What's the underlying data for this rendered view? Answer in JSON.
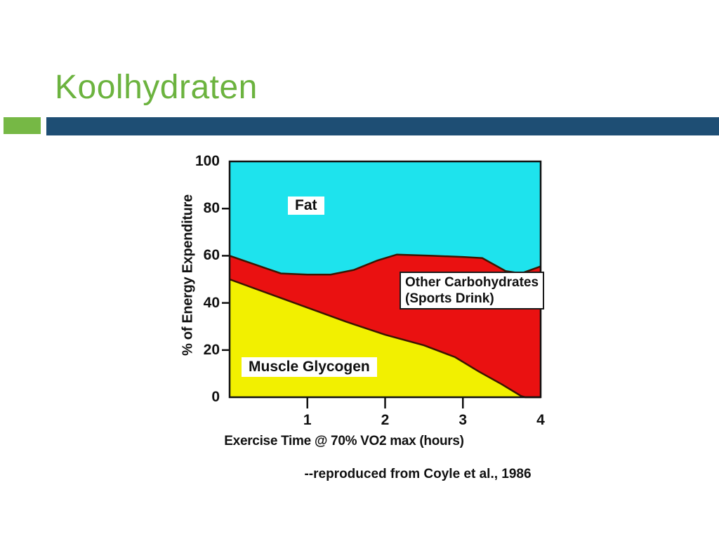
{
  "slide": {
    "title": "Koolhydraten"
  },
  "theme": {
    "title_color": "#6CB33F",
    "accent_square_color": "#76B845",
    "divider_color": "#1E4E74",
    "background": "#FFFFFF"
  },
  "chart_data": {
    "type": "area",
    "stack_order_bottom_to_top": [
      "Muscle Glycogen",
      "Other Carbohydrates (Sports Drink)",
      "Fat"
    ],
    "title": "",
    "xlabel": "Exercise Time @ 70% VO2 max (hours)",
    "ylabel": "% of Energy Expenditure",
    "caption": "--reproduced from Coyle et al., 1986",
    "xlim": [
      0,
      4
    ],
    "ylim": [
      0,
      100
    ],
    "xtick_labels": [
      1,
      2,
      3,
      4
    ],
    "xtick_marks": [
      1,
      2,
      3
    ],
    "ytick_labels": [
      0,
      20,
      40,
      60,
      80,
      100
    ],
    "ytick_marks": [
      20,
      40,
      60,
      80
    ],
    "grid": "off",
    "legend": "in-plot labels",
    "area_labels": {
      "fat": "Fat",
      "other_carbohydrates_line1": "Other Carbohydrates",
      "other_carbohydrates_line2": "(Sports Drink)",
      "muscle_glycogen": "Muscle Glycogen"
    },
    "colors": {
      "fat": "#1EE3ED",
      "other_carbohydrates": "#EA1111",
      "muscle_glycogen": "#F2F000",
      "boundary_line": "#3B1500",
      "axis": "#111111"
    },
    "boundaries": {
      "note": "percent of energy expenditure at top edge of each stacked band vs hours",
      "cho_total_pct": {
        "x": [
          0,
          0.35,
          0.66,
          1.0,
          1.3,
          1.6,
          1.9,
          2.15,
          2.6,
          3.0,
          3.25,
          3.55,
          3.75,
          4.0
        ],
        "y": [
          60,
          56,
          52.5,
          52,
          52,
          54,
          58,
          60.5,
          60,
          59.5,
          59,
          53.5,
          52.5,
          55.5
        ]
      },
      "muscle_glycogen_pct": {
        "x": [
          0,
          0.5,
          1.0,
          1.5,
          2.0,
          2.5,
          2.9,
          3.2,
          3.5,
          3.75,
          3.8,
          4.0
        ],
        "y": [
          50,
          44,
          38,
          32,
          26.5,
          22,
          17,
          11,
          5.5,
          0.5,
          0,
          0
        ]
      }
    }
  }
}
